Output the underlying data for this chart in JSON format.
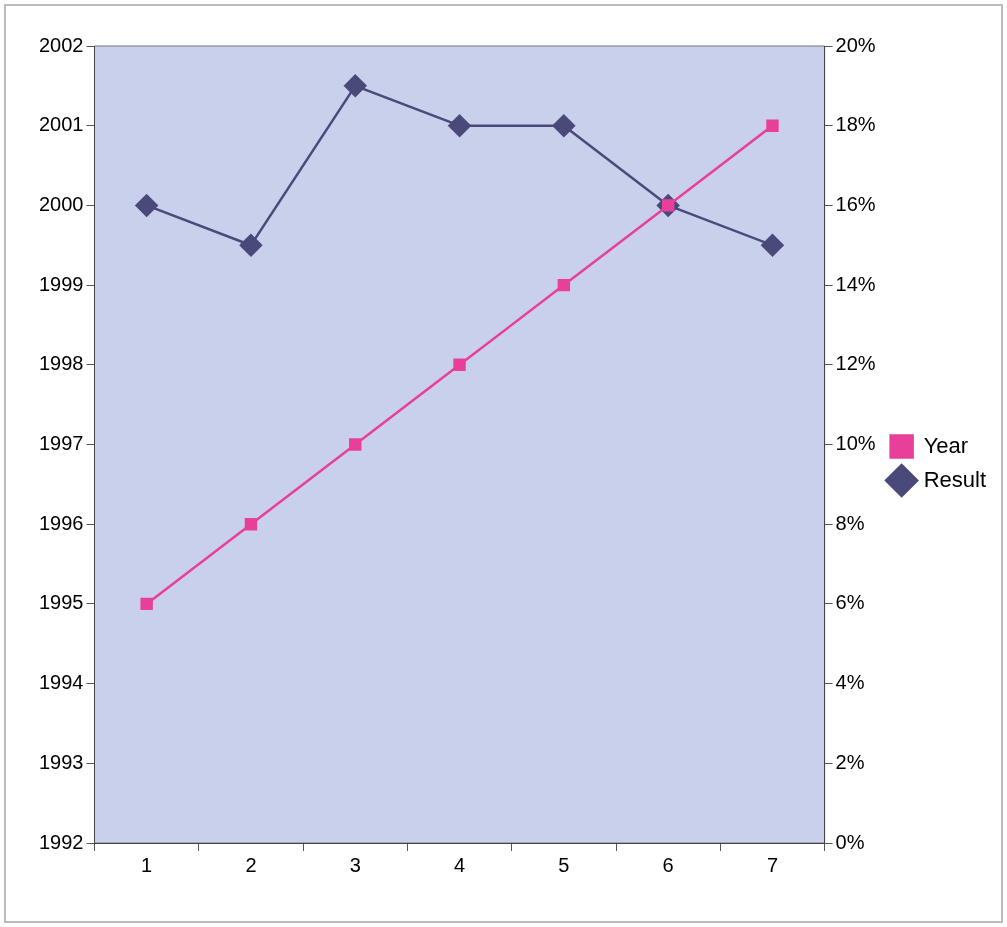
{
  "chart_data": {
    "type": "line",
    "categories": [
      "1",
      "2",
      "3",
      "4",
      "5",
      "6",
      "7"
    ],
    "series": [
      {
        "name": "Year",
        "color": "#e8409a",
        "marker": "square",
        "values": [
          1995,
          1996,
          1997,
          1998,
          1999,
          2000,
          2001
        ]
      },
      {
        "name": "Result",
        "color": "#4a4a7a",
        "marker": "diamond",
        "axis": "y2",
        "values": [
          16,
          15,
          19,
          18,
          18,
          16,
          15
        ]
      }
    ],
    "ylim": [
      1992,
      2002
    ],
    "yticks": [
      1992,
      1993,
      1994,
      1995,
      1996,
      1997,
      1998,
      1999,
      2000,
      2001,
      2002
    ],
    "y2lim": [
      0,
      20
    ],
    "y2ticks": [
      {
        "value": 0,
        "label": "0%"
      },
      {
        "value": 2,
        "label": "2%"
      },
      {
        "value": 4,
        "label": "4%"
      },
      {
        "value": 6,
        "label": "6%"
      },
      {
        "value": 8,
        "label": "8%"
      },
      {
        "value": 10,
        "label": "10%"
      },
      {
        "value": 12,
        "label": "12%"
      },
      {
        "value": 14,
        "label": "14%"
      },
      {
        "value": 16,
        "label": "16%"
      },
      {
        "value": 18,
        "label": "18%"
      },
      {
        "value": 20,
        "label": "20%"
      }
    ],
    "grid": false,
    "legend": "right",
    "line_style": "solid"
  }
}
